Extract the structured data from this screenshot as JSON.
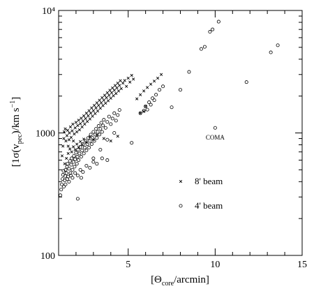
{
  "chart_data": {
    "type": "scatter",
    "xscale": "linear",
    "yscale": "log",
    "xlim": [
      1,
      15
    ],
    "ylim": [
      100,
      10000
    ],
    "xticks": [
      5,
      10,
      15
    ],
    "xtick_labels": [
      "5",
      "10",
      "15"
    ],
    "yticks": [
      100,
      1000,
      10000
    ],
    "ytick_labels": [
      "100",
      "1000",
      "10⁴"
    ],
    "xlabel": {
      "open": "[Θ",
      "sub": "core",
      "close": "/arcmin]"
    },
    "ylabel": {
      "open": "[1σ(v",
      "sub": "pec",
      "close": ")/km s",
      "sup": "−1",
      "end": "]"
    },
    "annotation": {
      "text": "COMA",
      "x": 10.0,
      "y": 920
    },
    "legend_position": "inside-lower-right",
    "series": [
      {
        "name": "8' beam",
        "marker": "x",
        "points": [
          [
            1.2,
            650
          ],
          [
            1.25,
            780
          ],
          [
            1.3,
            900
          ],
          [
            1.32,
            1020
          ],
          [
            1.38,
            1080
          ],
          [
            1.42,
            860
          ],
          [
            1.48,
            950
          ],
          [
            1.52,
            1050
          ],
          [
            1.55,
            780
          ],
          [
            1.6,
            880
          ],
          [
            1.62,
            1000
          ],
          [
            1.68,
            1120
          ],
          [
            1.72,
            920
          ],
          [
            1.78,
            1040
          ],
          [
            1.82,
            1180
          ],
          [
            1.85,
            860
          ],
          [
            1.9,
            980
          ],
          [
            1.95,
            1100
          ],
          [
            2.0,
            1220
          ],
          [
            2.05,
            1020
          ],
          [
            2.1,
            1150
          ],
          [
            2.15,
            1270
          ],
          [
            2.2,
            1060
          ],
          [
            2.25,
            1190
          ],
          [
            2.3,
            1320
          ],
          [
            2.35,
            1120
          ],
          [
            2.4,
            1250
          ],
          [
            2.45,
            1380
          ],
          [
            2.5,
            1180
          ],
          [
            2.55,
            1310
          ],
          [
            2.6,
            1450
          ],
          [
            2.65,
            1240
          ],
          [
            2.7,
            1380
          ],
          [
            2.75,
            1520
          ],
          [
            2.8,
            1300
          ],
          [
            2.85,
            1450
          ],
          [
            2.9,
            1600
          ],
          [
            2.95,
            1370
          ],
          [
            3.0,
            1520
          ],
          [
            3.05,
            1680
          ],
          [
            3.1,
            1440
          ],
          [
            3.15,
            1600
          ],
          [
            3.2,
            1760
          ],
          [
            3.25,
            1510
          ],
          [
            3.3,
            1680
          ],
          [
            3.35,
            1850
          ],
          [
            3.4,
            1590
          ],
          [
            3.45,
            1760
          ],
          [
            3.5,
            1940
          ],
          [
            3.55,
            1670
          ],
          [
            3.6,
            1850
          ],
          [
            3.65,
            2030
          ],
          [
            3.7,
            1750
          ],
          [
            3.75,
            1940
          ],
          [
            3.8,
            2130
          ],
          [
            3.85,
            1830
          ],
          [
            3.9,
            2030
          ],
          [
            3.95,
            2230
          ],
          [
            4.0,
            1920
          ],
          [
            4.05,
            2130
          ],
          [
            4.1,
            2330
          ],
          [
            4.15,
            2010
          ],
          [
            4.2,
            2230
          ],
          [
            4.25,
            2440
          ],
          [
            4.3,
            2100
          ],
          [
            4.35,
            2330
          ],
          [
            4.4,
            2550
          ],
          [
            4.45,
            2200
          ],
          [
            4.5,
            2440
          ],
          [
            4.55,
            2670
          ],
          [
            4.6,
            2300
          ],
          [
            4.7,
            2550
          ],
          [
            4.8,
            2680
          ],
          [
            4.9,
            2400
          ],
          [
            5.0,
            2800
          ],
          [
            5.1,
            2600
          ],
          [
            5.2,
            2950
          ],
          [
            5.3,
            2750
          ],
          [
            1.35,
            560
          ],
          [
            1.45,
            620
          ],
          [
            1.55,
            680
          ],
          [
            1.65,
            740
          ],
          [
            1.75,
            700
          ],
          [
            1.85,
            770
          ],
          [
            1.95,
            730
          ],
          [
            2.05,
            810
          ],
          [
            2.15,
            760
          ],
          [
            2.25,
            850
          ],
          [
            2.35,
            800
          ],
          [
            2.45,
            890
          ],
          [
            2.6,
            840
          ],
          [
            2.8,
            930
          ],
          [
            3.0,
            880
          ],
          [
            3.2,
            960
          ],
          [
            3.6,
            900
          ],
          [
            4.0,
            860
          ],
          [
            4.4,
            940
          ],
          [
            5.5,
            1900
          ],
          [
            5.7,
            2050
          ],
          [
            5.9,
            2200
          ],
          [
            6.1,
            2350
          ],
          [
            6.3,
            2500
          ],
          [
            6.5,
            2650
          ],
          [
            6.7,
            2800
          ],
          [
            6.9,
            3000
          ],
          [
            5.7,
            1450
          ],
          [
            5.9,
            1500
          ],
          [
            6.0,
            1650
          ]
        ]
      },
      {
        "name": "4' beam",
        "marker": "o",
        "points": [
          [
            1.1,
            310
          ],
          [
            1.15,
            345
          ],
          [
            1.18,
            380
          ],
          [
            1.22,
            420
          ],
          [
            1.25,
            455
          ],
          [
            1.28,
            490
          ],
          [
            1.3,
            365
          ],
          [
            1.35,
            410
          ],
          [
            1.38,
            445
          ],
          [
            1.4,
            500
          ],
          [
            1.45,
            470
          ],
          [
            1.48,
            530
          ],
          [
            1.52,
            560
          ],
          [
            1.55,
            440
          ],
          [
            1.6,
            510
          ],
          [
            1.65,
            590
          ],
          [
            1.68,
            470
          ],
          [
            1.72,
            550
          ],
          [
            1.75,
            620
          ],
          [
            1.8,
            500
          ],
          [
            1.85,
            580
          ],
          [
            1.88,
            650
          ],
          [
            1.92,
            530
          ],
          [
            1.95,
            610
          ],
          [
            2.0,
            690
          ],
          [
            2.05,
            560
          ],
          [
            2.08,
            640
          ],
          [
            2.12,
            730
          ],
          [
            2.15,
            600
          ],
          [
            2.2,
            680
          ],
          [
            2.25,
            770
          ],
          [
            2.3,
            640
          ],
          [
            2.35,
            720
          ],
          [
            2.4,
            810
          ],
          [
            2.45,
            680
          ],
          [
            2.5,
            760
          ],
          [
            2.55,
            860
          ],
          [
            2.6,
            720
          ],
          [
            2.65,
            810
          ],
          [
            2.7,
            910
          ],
          [
            2.75,
            760
          ],
          [
            2.8,
            860
          ],
          [
            2.85,
            970
          ],
          [
            2.9,
            810
          ],
          [
            2.95,
            910
          ],
          [
            3.0,
            1020
          ],
          [
            3.05,
            860
          ],
          [
            3.1,
            970
          ],
          [
            3.15,
            1080
          ],
          [
            3.2,
            910
          ],
          [
            3.25,
            1020
          ],
          [
            3.3,
            1140
          ],
          [
            3.35,
            970
          ],
          [
            3.4,
            1080
          ],
          [
            3.45,
            1210
          ],
          [
            3.5,
            1020
          ],
          [
            3.55,
            1150
          ],
          [
            3.6,
            1280
          ],
          [
            3.7,
            1100
          ],
          [
            3.8,
            1230
          ],
          [
            3.9,
            1360
          ],
          [
            4.0,
            1180
          ],
          [
            4.1,
            1310
          ],
          [
            4.2,
            1450
          ],
          [
            4.3,
            1260
          ],
          [
            4.4,
            1400
          ],
          [
            4.5,
            1540
          ],
          [
            1.4,
            380
          ],
          [
            1.5,
            420
          ],
          [
            1.6,
            400
          ],
          [
            1.7,
            450
          ],
          [
            1.8,
            430
          ],
          [
            1.95,
            470
          ],
          [
            2.1,
            450
          ],
          [
            2.25,
            500
          ],
          [
            2.4,
            480
          ],
          [
            2.6,
            540
          ],
          [
            2.8,
            520
          ],
          [
            3.0,
            580
          ],
          [
            3.2,
            560
          ],
          [
            3.5,
            620
          ],
          [
            3.8,
            600
          ],
          [
            2.3,
            430
          ],
          [
            3.0,
            620
          ],
          [
            3.4,
            730
          ],
          [
            3.8,
            880
          ],
          [
            4.2,
            1000
          ],
          [
            5.2,
            830
          ],
          [
            2.1,
            290
          ],
          [
            5.7,
            1450
          ],
          [
            5.9,
            1520
          ],
          [
            6.0,
            1650
          ],
          [
            6.2,
            1780
          ],
          [
            6.4,
            1920
          ],
          [
            6.6,
            2050
          ],
          [
            6.8,
            2250
          ],
          [
            7.0,
            2400
          ],
          [
            6.1,
            1550
          ],
          [
            6.3,
            1700
          ],
          [
            6.5,
            1850
          ],
          [
            7.5,
            1620
          ],
          [
            8.0,
            2250
          ],
          [
            8.5,
            3150
          ],
          [
            9.2,
            4850
          ],
          [
            9.4,
            5050
          ],
          [
            9.7,
            6700
          ],
          [
            9.85,
            7000
          ],
          [
            10.0,
            1100
          ],
          [
            10.2,
            8100
          ],
          [
            11.8,
            2600
          ],
          [
            13.2,
            4550
          ],
          [
            13.6,
            5200
          ]
        ]
      }
    ]
  }
}
